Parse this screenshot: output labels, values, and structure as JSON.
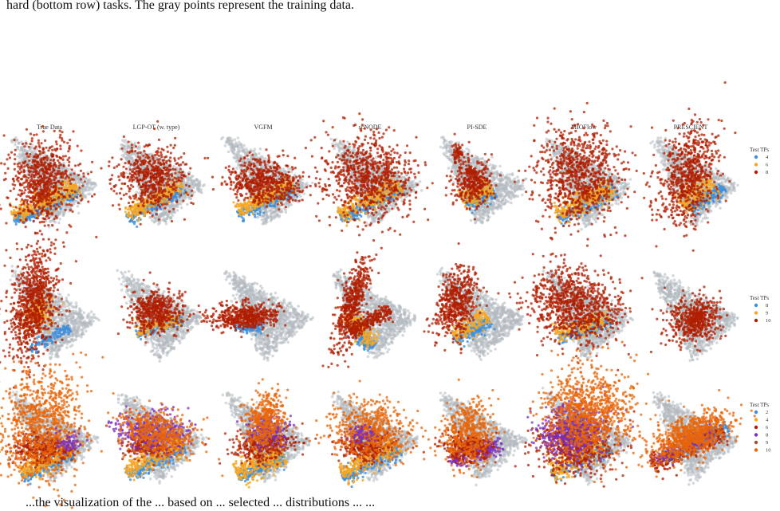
{
  "caption_top": "hard (bottom row) tasks. The gray points represent the training data.",
  "caption_bottom": "...the visualization of the ... based on ... selected ... distributions ... ...",
  "columns": [
    "True Data",
    "LGP-OT (w. type)",
    "VGFM",
    "scNODE",
    "PI-SDE",
    "MIOFlow",
    "PRESCIENT"
  ],
  "colors": {
    "train": "#b3b9bf",
    "blue": "#3d8fdb",
    "yellow": "#f5a623",
    "red": "#b01e00",
    "purple": "#7b2fbe",
    "brown": "#a0522d",
    "orange": "#e8650a"
  },
  "rows": [
    {
      "legend_title": "Test TPs",
      "legend": [
        {
          "label": "4",
          "color": "#3d8fdb"
        },
        {
          "label": "6",
          "color": "#f5a623"
        },
        {
          "label": "8",
          "color": "#b01e00"
        }
      ]
    },
    {
      "legend_title": "Test TPs",
      "legend": [
        {
          "label": "8",
          "color": "#3d8fdb"
        },
        {
          "label": "9",
          "color": "#f5a623"
        },
        {
          "label": "10",
          "color": "#b01e00"
        }
      ]
    },
    {
      "legend_title": "Test TPs",
      "legend": [
        {
          "label": "2",
          "color": "#3d8fdb"
        },
        {
          "label": "4",
          "color": "#f5a623"
        },
        {
          "label": "6",
          "color": "#b01e00"
        },
        {
          "label": "8",
          "color": "#7b2fbe"
        },
        {
          "label": "9",
          "color": "#a0522d"
        },
        {
          "label": "10",
          "color": "#e8650a"
        }
      ]
    }
  ]
}
